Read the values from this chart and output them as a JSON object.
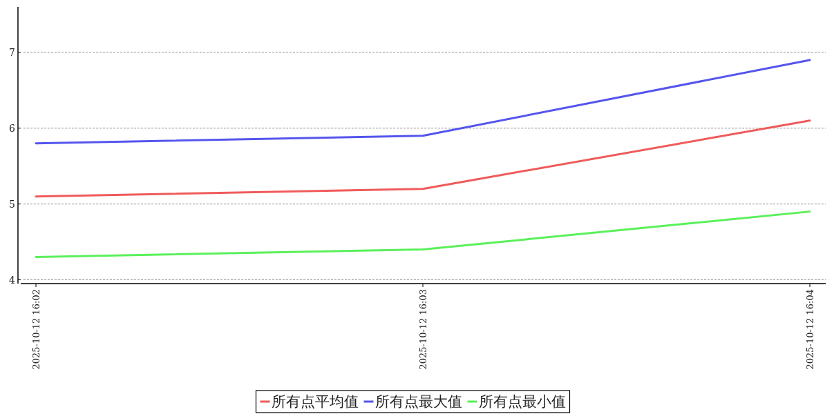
{
  "chart_data": {
    "type": "line",
    "categories": [
      "2025-10-12 16:02",
      "2025-10-12 16:03",
      "2025-10-12 16:04"
    ],
    "series": [
      {
        "name": "所有点平均值",
        "color": "#f05a5a",
        "values": [
          5.1,
          5.2,
          6.1
        ]
      },
      {
        "name": "所有点最大值",
        "color": "#5555ee",
        "values": [
          5.8,
          5.9,
          6.9
        ]
      },
      {
        "name": "所有点最小值",
        "color": "#5af05a",
        "values": [
          4.3,
          4.4,
          4.9
        ]
      }
    ],
    "ylim": [
      3.95,
      7.6
    ],
    "yticks": [
      4,
      5,
      6,
      7
    ],
    "grid": "y",
    "legend": "bottom",
    "marker": "none",
    "line_style": "solid"
  }
}
